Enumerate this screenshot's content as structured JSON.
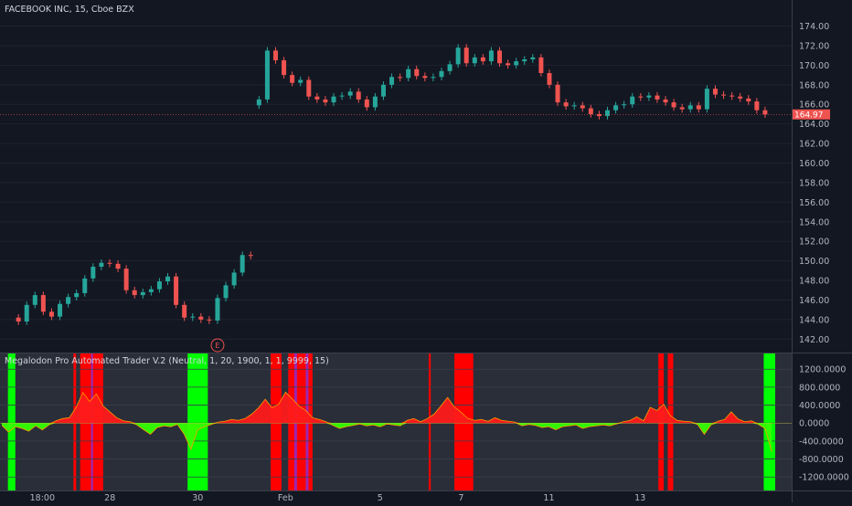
{
  "chart_data": [
    {
      "type": "candlestick",
      "title": "FACEBOOK INC, 15, Cboe BZX",
      "ylim": [
        141,
        174.8
      ],
      "y_ticks": [
        "142.00",
        "144.00",
        "146.00",
        "148.00",
        "150.00",
        "152.00",
        "154.00",
        "156.00",
        "158.00",
        "160.00",
        "162.00",
        "164.00",
        "166.00",
        "168.00",
        "170.00",
        "172.00",
        "174.00"
      ],
      "y_tick_values": [
        142,
        144,
        146,
        148,
        150,
        152,
        154,
        156,
        158,
        160,
        162,
        164,
        166,
        168,
        170,
        172,
        174
      ],
      "last_price_label": "164.97",
      "last_price": 164.97,
      "earnings_marker": "E",
      "earnings_x_index": 26,
      "price_series": [
        [
          0,
          144.2
        ],
        [
          2,
          143.8
        ],
        [
          3,
          145.5
        ],
        [
          4,
          146.5
        ],
        [
          5,
          144.8
        ],
        [
          6,
          144.3
        ],
        [
          7,
          145.6
        ],
        [
          8,
          146.3
        ],
        [
          9,
          146.7
        ],
        [
          10,
          148.2
        ],
        [
          11,
          149.4
        ],
        [
          12,
          149.8
        ],
        [
          13,
          149.7
        ],
        [
          14,
          149.2
        ],
        [
          15,
          147.0
        ],
        [
          16,
          146.5
        ],
        [
          17,
          146.8
        ],
        [
          18,
          147.1
        ],
        [
          19,
          147.9
        ],
        [
          20,
          148.4
        ],
        [
          21,
          145.5
        ],
        [
          22,
          144.2
        ],
        [
          23,
          144.3
        ],
        [
          24,
          144.0
        ],
        [
          25,
          143.9
        ],
        [
          26,
          146.2
        ],
        [
          27,
          147.5
        ],
        [
          28,
          148.8
        ],
        [
          29,
          150.6
        ],
        [
          30,
          150.5
        ],
        [
          31,
          166.5
        ],
        [
          32,
          171.5
        ],
        [
          33,
          170.5
        ],
        [
          34,
          169.0
        ],
        [
          35,
          168.2
        ],
        [
          36,
          168.5
        ],
        [
          37,
          166.8
        ],
        [
          38,
          166.5
        ],
        [
          39,
          166.2
        ],
        [
          40,
          166.8
        ],
        [
          41,
          166.9
        ],
        [
          42,
          167.3
        ],
        [
          43,
          166.5
        ],
        [
          44,
          165.7
        ],
        [
          45,
          166.8
        ],
        [
          46,
          168.0
        ],
        [
          47,
          168.8
        ],
        [
          48,
          168.7
        ],
        [
          49,
          169.6
        ],
        [
          50,
          168.9
        ],
        [
          51,
          168.7
        ],
        [
          52,
          168.8
        ],
        [
          53,
          169.4
        ],
        [
          54,
          170.1
        ],
        [
          55,
          171.8
        ],
        [
          56,
          170.2
        ],
        [
          57,
          170.8
        ],
        [
          58,
          170.4
        ],
        [
          59,
          171.5
        ],
        [
          60,
          170.2
        ],
        [
          61,
          170.0
        ],
        [
          62,
          170.4
        ],
        [
          63,
          170.6
        ],
        [
          64,
          170.8
        ],
        [
          65,
          169.2
        ],
        [
          66,
          168.0
        ],
        [
          67,
          166.2
        ],
        [
          68,
          165.8
        ],
        [
          69,
          165.9
        ],
        [
          70,
          165.6
        ],
        [
          71,
          165.0
        ],
        [
          72,
          164.8
        ],
        [
          73,
          165.4
        ],
        [
          74,
          165.9
        ],
        [
          75,
          166.0
        ],
        [
          76,
          166.8
        ],
        [
          77,
          166.7
        ],
        [
          78,
          166.9
        ],
        [
          79,
          166.5
        ],
        [
          80,
          166.2
        ],
        [
          81,
          165.7
        ],
        [
          82,
          165.5
        ],
        [
          83,
          165.9
        ],
        [
          84,
          165.5
        ],
        [
          85,
          167.6
        ],
        [
          86,
          167.0
        ],
        [
          87,
          166.9
        ],
        [
          88,
          166.8
        ],
        [
          89,
          166.6
        ],
        [
          90,
          166.3
        ],
        [
          91,
          165.4
        ],
        [
          92,
          164.97
        ]
      ],
      "x_range": [
        0,
        93
      ]
    },
    {
      "type": "area",
      "title": "Megalodon Pro Automated Trader V.2 (Neutral, 1, 20, 1900, 1, 1, 9999, 15)",
      "ylim": [
        -1500,
        1550
      ],
      "y_ticks": [
        "1200.0000",
        "800.0000",
        "400.0000",
        "0.0000",
        "-400.0000",
        "-800.0000",
        "-1200.0000"
      ],
      "y_tick_values": [
        1200,
        800,
        400,
        0,
        -400,
        -800,
        -1200
      ],
      "x_ticks": [
        "18:00",
        "28",
        "30",
        "Feb",
        "5",
        "7",
        "11",
        "13"
      ],
      "x_tick_index": [
        6,
        16,
        29,
        42,
        56,
        68,
        81,
        94.5
      ],
      "colors": {
        "positive": "#ff1a1a",
        "negative": "#33ff00",
        "signal_red": "#ff0000",
        "signal_green": "#00ff00",
        "signal_purple": "#9c27b0"
      },
      "signal_bands": [
        {
          "x0": 0.9,
          "x1": 2.0,
          "type": "green"
        },
        {
          "x0": 10.6,
          "x1": 11.0,
          "type": "red"
        },
        {
          "x0": 11.6,
          "x1": 15.0,
          "type": "red"
        },
        {
          "x0": 13.2,
          "x1": 13.5,
          "type": "purple"
        },
        {
          "x0": 27.5,
          "x1": 30.5,
          "type": "green"
        },
        {
          "x0": 39.8,
          "x1": 41.4,
          "type": "red"
        },
        {
          "x0": 42.4,
          "x1": 46.0,
          "type": "red"
        },
        {
          "x0": 43.3,
          "x1": 43.7,
          "type": "purple"
        },
        {
          "x0": 45.0,
          "x1": 45.4,
          "type": "purple"
        },
        {
          "x0": 63.2,
          "x1": 63.5,
          "type": "red"
        },
        {
          "x0": 67.0,
          "x1": 69.8,
          "type": "red"
        },
        {
          "x0": 97.2,
          "x1": 98.0,
          "type": "red"
        },
        {
          "x0": 98.6,
          "x1": 99.4,
          "type": "red"
        },
        {
          "x0": 112.8,
          "x1": 114.5,
          "type": "green"
        }
      ],
      "oscillator": [
        [
          0,
          -50
        ],
        [
          1,
          -200
        ],
        [
          2,
          -80
        ],
        [
          3,
          -120
        ],
        [
          4,
          -180
        ],
        [
          5,
          -60
        ],
        [
          6,
          -150
        ],
        [
          7,
          -40
        ],
        [
          8,
          50
        ],
        [
          9,
          100
        ],
        [
          10,
          120
        ],
        [
          11,
          350
        ],
        [
          12,
          680
        ],
        [
          13,
          480
        ],
        [
          14,
          650
        ],
        [
          15,
          380
        ],
        [
          16,
          250
        ],
        [
          17,
          120
        ],
        [
          18,
          50
        ],
        [
          19,
          30
        ],
        [
          20,
          -40
        ],
        [
          21,
          -150
        ],
        [
          22,
          -250
        ],
        [
          23,
          -100
        ],
        [
          24,
          -60
        ],
        [
          25,
          -80
        ],
        [
          26,
          -30
        ],
        [
          27,
          -250
        ],
        [
          28,
          -580
        ],
        [
          29,
          -150
        ],
        [
          30,
          -80
        ],
        [
          31,
          -30
        ],
        [
          32,
          20
        ],
        [
          33,
          40
        ],
        [
          34,
          80
        ],
        [
          35,
          60
        ],
        [
          36,
          100
        ],
        [
          37,
          200
        ],
        [
          38,
          340
        ],
        [
          39,
          530
        ],
        [
          40,
          340
        ],
        [
          41,
          420
        ],
        [
          42,
          690
        ],
        [
          43,
          540
        ],
        [
          44,
          380
        ],
        [
          45,
          280
        ],
        [
          46,
          120
        ],
        [
          47,
          80
        ],
        [
          48,
          30
        ],
        [
          49,
          -50
        ],
        [
          50,
          -120
        ],
        [
          51,
          -80
        ],
        [
          52,
          -50
        ],
        [
          53,
          -20
        ],
        [
          54,
          -60
        ],
        [
          55,
          -40
        ],
        [
          56,
          -80
        ],
        [
          57,
          -20
        ],
        [
          58,
          -40
        ],
        [
          59,
          -60
        ],
        [
          60,
          60
        ],
        [
          61,
          100
        ],
        [
          62,
          30
        ],
        [
          63,
          100
        ],
        [
          64,
          200
        ],
        [
          65,
          380
        ],
        [
          66,
          570
        ],
        [
          67,
          360
        ],
        [
          68,
          240
        ],
        [
          69,
          100
        ],
        [
          70,
          60
        ],
        [
          71,
          80
        ],
        [
          72,
          40
        ],
        [
          73,
          120
        ],
        [
          74,
          60
        ],
        [
          75,
          40
        ],
        [
          76,
          20
        ],
        [
          77,
          -60
        ],
        [
          78,
          -30
        ],
        [
          79,
          -50
        ],
        [
          80,
          -100
        ],
        [
          81,
          -80
        ],
        [
          82,
          -150
        ],
        [
          83,
          -80
        ],
        [
          84,
          -60
        ],
        [
          85,
          -40
        ],
        [
          86,
          -120
        ],
        [
          87,
          -80
        ],
        [
          88,
          -60
        ],
        [
          89,
          -40
        ],
        [
          90,
          -60
        ],
        [
          91,
          -20
        ],
        [
          92,
          30
        ],
        [
          93,
          60
        ],
        [
          94,
          140
        ],
        [
          95,
          50
        ],
        [
          96,
          350
        ],
        [
          97,
          280
        ],
        [
          98,
          420
        ],
        [
          99,
          160
        ],
        [
          100,
          60
        ],
        [
          101,
          40
        ],
        [
          102,
          30
        ],
        [
          103,
          -30
        ],
        [
          104,
          -250
        ],
        [
          105,
          -40
        ],
        [
          106,
          40
        ],
        [
          107,
          80
        ],
        [
          108,
          250
        ],
        [
          109,
          90
        ],
        [
          110,
          30
        ],
        [
          111,
          50
        ],
        [
          112,
          -30
        ],
        [
          113,
          -120
        ],
        [
          114,
          -640
        ]
      ],
      "x_range": [
        0,
        114.5
      ]
    }
  ]
}
